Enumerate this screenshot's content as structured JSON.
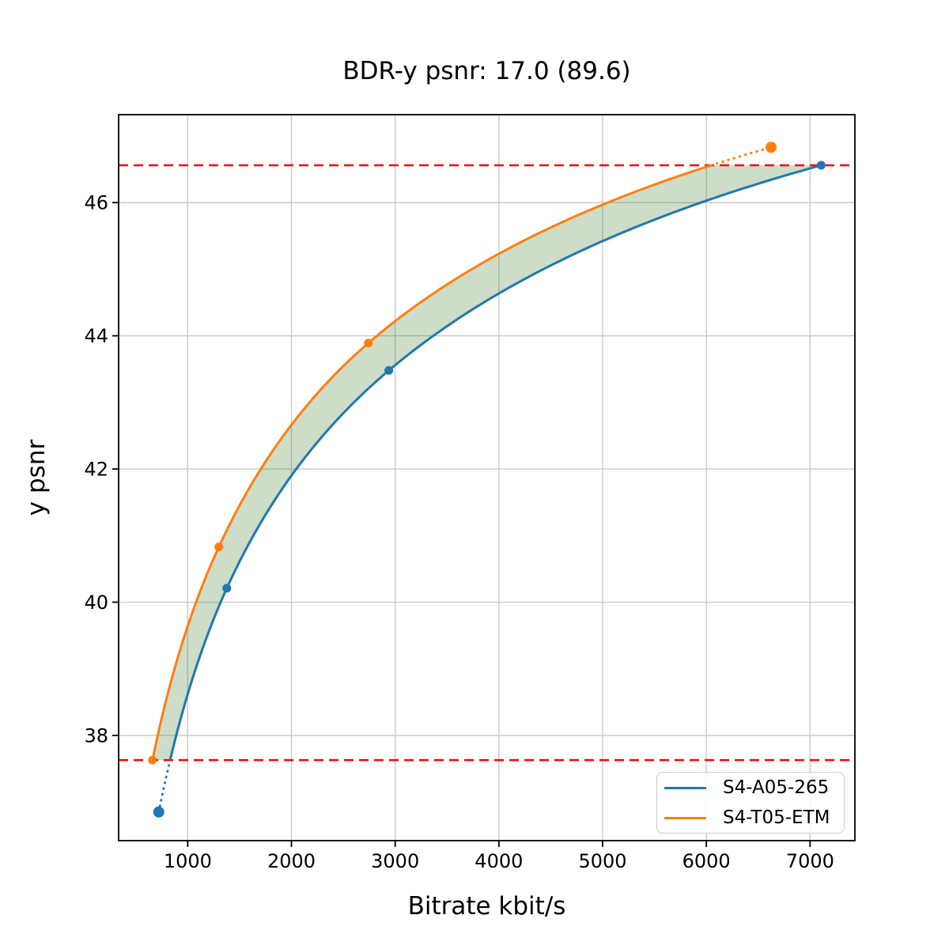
{
  "chart_data": {
    "type": "line",
    "title": "BDR-y psnr: 17.0 (89.6)",
    "xlabel": "Bitrate kbit/s",
    "ylabel": "y psnr",
    "xlim": [
      334,
      7432
    ],
    "ylim": [
      36.42,
      47.32
    ],
    "x_ticks": [
      1000,
      2000,
      3000,
      4000,
      5000,
      6000,
      7000
    ],
    "y_ticks": [
      38,
      40,
      42,
      44,
      46
    ],
    "grid": true,
    "grid_color": "#c6c6c6",
    "legend_position": "lower right",
    "series": [
      {
        "name": "S4-A05-265",
        "color": "#1f77b4",
        "points": [
          [
            721,
            36.85
          ],
          [
            1377,
            40.21
          ],
          [
            2939,
            43.48
          ],
          [
            7107,
            46.56
          ]
        ]
      },
      {
        "name": "S4-T05-ETM",
        "color": "#ff7f0e",
        "points": [
          [
            660,
            37.63
          ],
          [
            1300,
            40.83
          ],
          [
            2741,
            43.89
          ],
          [
            6624,
            46.83
          ]
        ]
      }
    ],
    "overlap_bounds": {
      "psnr_low": 37.63,
      "psnr_high": 46.56,
      "line_color": "#ff0000",
      "line_style": "dashed"
    },
    "fill_between_color": "rgba(70,130,50,0.27)"
  }
}
